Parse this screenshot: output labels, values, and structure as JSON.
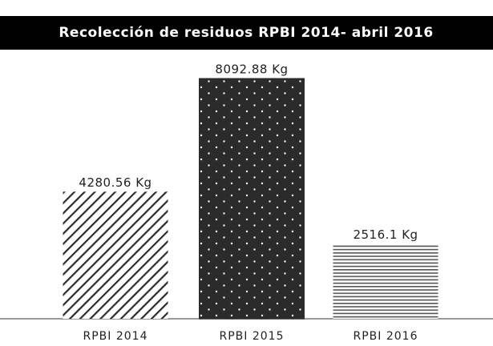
{
  "chart_data": {
    "type": "bar",
    "title": "Recolección de residuos RPBI 2014- abril 2016",
    "categories": [
      "RPBI 2014",
      "RPBI 2015",
      "RPBI 2016"
    ],
    "values": [
      4280.56,
      8092.88,
      2516.1
    ],
    "value_labels": [
      "4280.56 Kg",
      "8092.88 Kg",
      "2516.1 Kg"
    ],
    "patterns": [
      "hatch",
      "dots",
      "lines"
    ],
    "color": "#2b2b2b"
  }
}
